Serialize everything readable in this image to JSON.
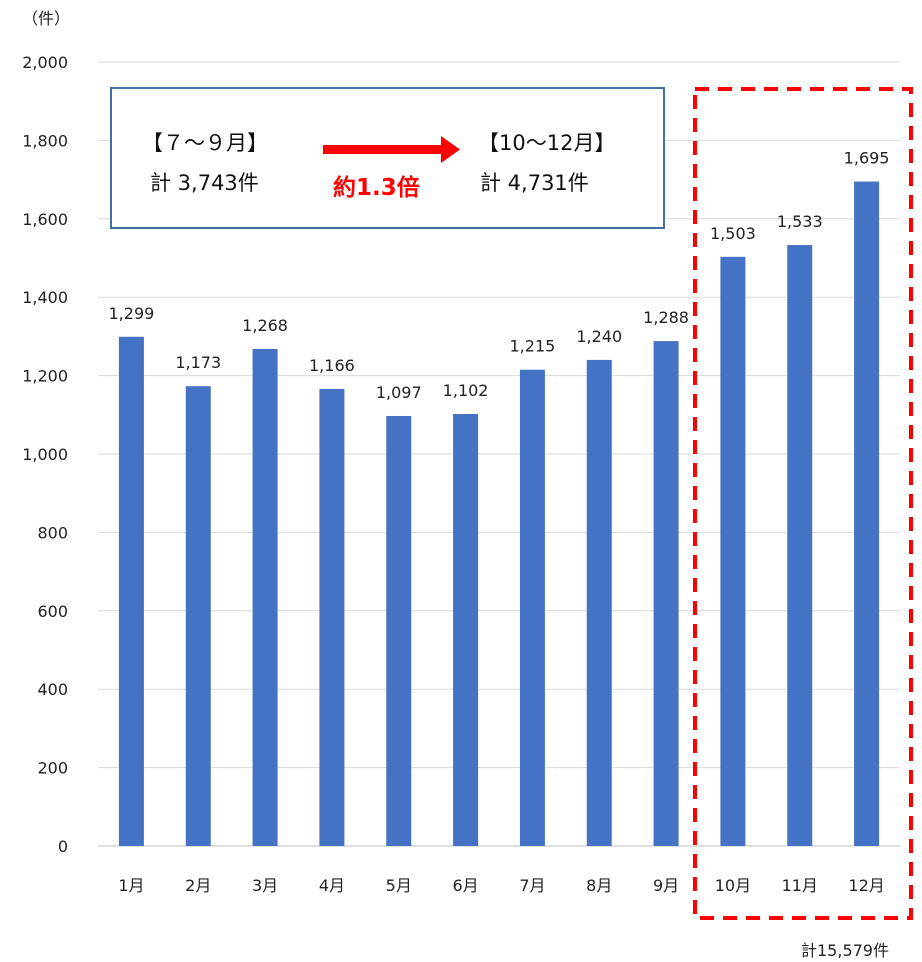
{
  "chart_data": {
    "type": "bar",
    "unit_label": "（件）",
    "categories": [
      "1月",
      "2月",
      "3月",
      "4月",
      "5月",
      "6月",
      "7月",
      "8月",
      "9月",
      "10月",
      "11月",
      "12月"
    ],
    "values": [
      1299,
      1173,
      1268,
      1166,
      1097,
      1102,
      1215,
      1240,
      1288,
      1503,
      1533,
      1695
    ],
    "data_labels": [
      "1,299",
      "1,173",
      "1,268",
      "1,166",
      "1,097",
      "1,102",
      "1,215",
      "1,240",
      "1,288",
      "1,503",
      "1,533",
      "1,695"
    ],
    "ylim": [
      0,
      2000
    ],
    "y_ticks": [
      0,
      200,
      400,
      600,
      800,
      1000,
      1200,
      1400,
      1600,
      1800,
      2000
    ],
    "y_tick_labels": [
      "0",
      "200",
      "400",
      "600",
      "800",
      "1,000",
      "1,200",
      "1,400",
      "1,600",
      "1,800",
      "2,000"
    ],
    "grid": true,
    "bar_color": "#4472c4",
    "highlight": {
      "categories": [
        "10月",
        "11月",
        "12月"
      ],
      "border_color": "#ff0000",
      "total_label": "計15,579件"
    },
    "annotation": {
      "left_title": "【７～９月】",
      "left_total": "計 3,743件",
      "right_title": "【10～12月】",
      "right_total": "計 4,731件",
      "ratio_label": "約1.3倍",
      "arrow_color": "#ff0000",
      "box_border_color": "#41719c"
    }
  }
}
